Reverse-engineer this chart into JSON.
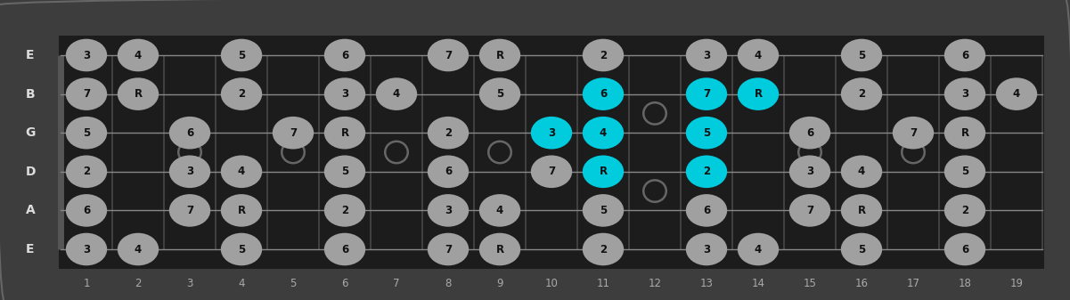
{
  "num_frets": 19,
  "strings": [
    "E",
    "B",
    "G",
    "D",
    "A",
    "E"
  ],
  "fret_numbers": [
    1,
    2,
    3,
    4,
    5,
    6,
    7,
    8,
    9,
    10,
    11,
    12,
    13,
    14,
    15,
    16,
    17,
    18,
    19
  ],
  "bg_color": "#3d3d3d",
  "fretboard_color": "#1c1c1c",
  "note_color_normal": "#a0a0a0",
  "note_color_highlight": "#00ccdd",
  "note_text_color": "#111111",
  "string_label_color": "#dddddd",
  "fret_label_color": "#aaaaaa",
  "position_dots_single": [
    3,
    5,
    7,
    9,
    15,
    17
  ],
  "position_dots_double": [
    12
  ],
  "notes": [
    {
      "string": 0,
      "fret": 1,
      "label": "3",
      "highlight": false
    },
    {
      "string": 0,
      "fret": 2,
      "label": "4",
      "highlight": false
    },
    {
      "string": 0,
      "fret": 4,
      "label": "5",
      "highlight": false
    },
    {
      "string": 0,
      "fret": 6,
      "label": "6",
      "highlight": false
    },
    {
      "string": 0,
      "fret": 8,
      "label": "7",
      "highlight": false
    },
    {
      "string": 0,
      "fret": 9,
      "label": "R",
      "highlight": false
    },
    {
      "string": 0,
      "fret": 11,
      "label": "2",
      "highlight": false
    },
    {
      "string": 0,
      "fret": 13,
      "label": "3",
      "highlight": false
    },
    {
      "string": 0,
      "fret": 14,
      "label": "4",
      "highlight": false
    },
    {
      "string": 0,
      "fret": 16,
      "label": "5",
      "highlight": false
    },
    {
      "string": 0,
      "fret": 18,
      "label": "6",
      "highlight": false
    },
    {
      "string": 1,
      "fret": 1,
      "label": "7",
      "highlight": false
    },
    {
      "string": 1,
      "fret": 2,
      "label": "R",
      "highlight": false
    },
    {
      "string": 1,
      "fret": 4,
      "label": "2",
      "highlight": false
    },
    {
      "string": 1,
      "fret": 6,
      "label": "3",
      "highlight": false
    },
    {
      "string": 1,
      "fret": 7,
      "label": "4",
      "highlight": false
    },
    {
      "string": 1,
      "fret": 9,
      "label": "5",
      "highlight": false
    },
    {
      "string": 1,
      "fret": 11,
      "label": "6",
      "highlight": true
    },
    {
      "string": 1,
      "fret": 13,
      "label": "7",
      "highlight": true
    },
    {
      "string": 1,
      "fret": 14,
      "label": "R",
      "highlight": true
    },
    {
      "string": 1,
      "fret": 16,
      "label": "2",
      "highlight": false
    },
    {
      "string": 1,
      "fret": 18,
      "label": "3",
      "highlight": false
    },
    {
      "string": 1,
      "fret": 19,
      "label": "4",
      "highlight": false
    },
    {
      "string": 2,
      "fret": 1,
      "label": "5",
      "highlight": false
    },
    {
      "string": 2,
      "fret": 3,
      "label": "6",
      "highlight": false
    },
    {
      "string": 2,
      "fret": 5,
      "label": "7",
      "highlight": false
    },
    {
      "string": 2,
      "fret": 6,
      "label": "R",
      "highlight": false
    },
    {
      "string": 2,
      "fret": 8,
      "label": "2",
      "highlight": false
    },
    {
      "string": 2,
      "fret": 10,
      "label": "3",
      "highlight": true
    },
    {
      "string": 2,
      "fret": 11,
      "label": "4",
      "highlight": true
    },
    {
      "string": 2,
      "fret": 13,
      "label": "5",
      "highlight": true
    },
    {
      "string": 2,
      "fret": 15,
      "label": "6",
      "highlight": false
    },
    {
      "string": 2,
      "fret": 17,
      "label": "7",
      "highlight": false
    },
    {
      "string": 2,
      "fret": 18,
      "label": "R",
      "highlight": false
    },
    {
      "string": 3,
      "fret": 1,
      "label": "2",
      "highlight": false
    },
    {
      "string": 3,
      "fret": 3,
      "label": "3",
      "highlight": false
    },
    {
      "string": 3,
      "fret": 4,
      "label": "4",
      "highlight": false
    },
    {
      "string": 3,
      "fret": 6,
      "label": "5",
      "highlight": false
    },
    {
      "string": 3,
      "fret": 8,
      "label": "6",
      "highlight": false
    },
    {
      "string": 3,
      "fret": 10,
      "label": "7",
      "highlight": false
    },
    {
      "string": 3,
      "fret": 11,
      "label": "R",
      "highlight": true
    },
    {
      "string": 3,
      "fret": 13,
      "label": "2",
      "highlight": true
    },
    {
      "string": 3,
      "fret": 15,
      "label": "3",
      "highlight": false
    },
    {
      "string": 3,
      "fret": 16,
      "label": "4",
      "highlight": false
    },
    {
      "string": 3,
      "fret": 18,
      "label": "5",
      "highlight": false
    },
    {
      "string": 4,
      "fret": 1,
      "label": "6",
      "highlight": false
    },
    {
      "string": 4,
      "fret": 3,
      "label": "7",
      "highlight": false
    },
    {
      "string": 4,
      "fret": 4,
      "label": "R",
      "highlight": false
    },
    {
      "string": 4,
      "fret": 6,
      "label": "2",
      "highlight": false
    },
    {
      "string": 4,
      "fret": 8,
      "label": "3",
      "highlight": false
    },
    {
      "string": 4,
      "fret": 9,
      "label": "4",
      "highlight": false
    },
    {
      "string": 4,
      "fret": 11,
      "label": "5",
      "highlight": false
    },
    {
      "string": 4,
      "fret": 13,
      "label": "6",
      "highlight": false
    },
    {
      "string": 4,
      "fret": 15,
      "label": "7",
      "highlight": false
    },
    {
      "string": 4,
      "fret": 16,
      "label": "R",
      "highlight": false
    },
    {
      "string": 4,
      "fret": 18,
      "label": "2",
      "highlight": false
    },
    {
      "string": 5,
      "fret": 1,
      "label": "3",
      "highlight": false
    },
    {
      "string": 5,
      "fret": 2,
      "label": "4",
      "highlight": false
    },
    {
      "string": 5,
      "fret": 4,
      "label": "5",
      "highlight": false
    },
    {
      "string": 5,
      "fret": 6,
      "label": "6",
      "highlight": false
    },
    {
      "string": 5,
      "fret": 8,
      "label": "7",
      "highlight": false
    },
    {
      "string": 5,
      "fret": 9,
      "label": "R",
      "highlight": false
    },
    {
      "string": 5,
      "fret": 11,
      "label": "2",
      "highlight": false
    },
    {
      "string": 5,
      "fret": 13,
      "label": "3",
      "highlight": false
    },
    {
      "string": 5,
      "fret": 14,
      "label": "4",
      "highlight": false
    },
    {
      "string": 5,
      "fret": 16,
      "label": "5",
      "highlight": false
    },
    {
      "string": 5,
      "fret": 18,
      "label": "6",
      "highlight": false
    }
  ]
}
